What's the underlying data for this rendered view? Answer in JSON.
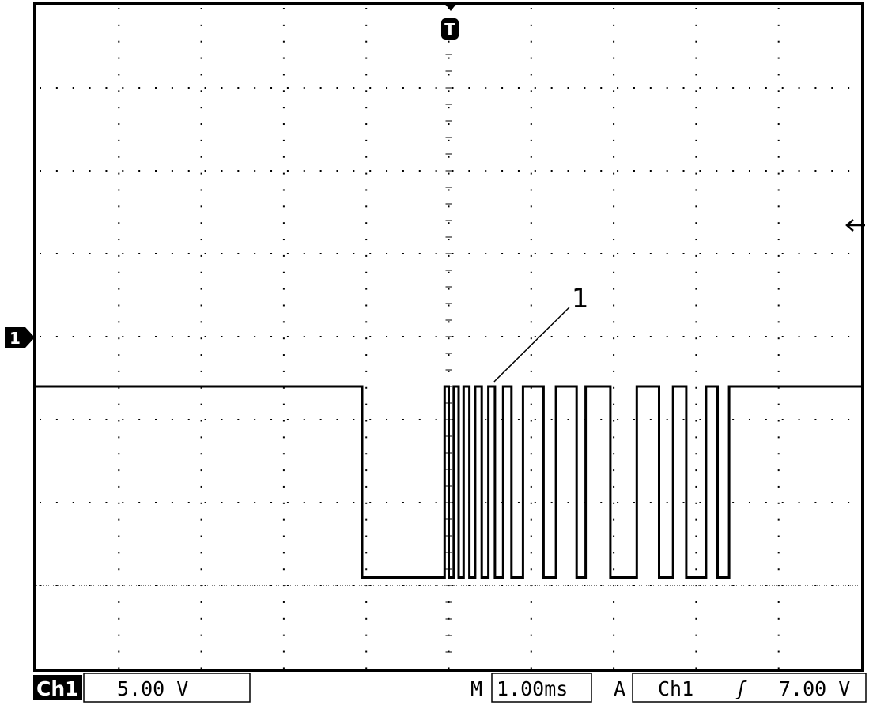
{
  "chart_data": {
    "type": "line",
    "title": "",
    "xlabel": "",
    "ylabel": "",
    "grid": true,
    "x_divisions": 10,
    "y_divisions": 8,
    "xlim": [
      -5.0,
      5.0
    ],
    "ylim": [
      -1.0,
      7.0
    ],
    "x_unit": "ms",
    "y_unit": "div",
    "series": [
      {
        "values_note": "",
        "x": [
          -5.0,
          -1.05,
          -1.05,
          -0.05,
          -0.05,
          0.0,
          0.0,
          0.06,
          0.06,
          0.12,
          0.12,
          0.18,
          0.18,
          0.25,
          0.25,
          0.32,
          0.32,
          0.4,
          0.4,
          0.48,
          0.48,
          0.56,
          0.56,
          0.66,
          0.66,
          0.76,
          0.76,
          0.9,
          0.9,
          1.15,
          1.15,
          1.3,
          1.3,
          1.55,
          1.55,
          1.66,
          1.66,
          1.96,
          1.96,
          2.28,
          2.28,
          2.55,
          2.55,
          2.72,
          2.72,
          2.88,
          2.88,
          3.12,
          3.12,
          3.26,
          3.26,
          3.4,
          3.4,
          5.0
        ],
        "values": [
          2.4,
          2.4,
          0.1,
          0.1,
          2.4,
          2.4,
          0.1,
          0.1,
          2.4,
          2.4,
          0.1,
          0.1,
          2.4,
          2.4,
          0.1,
          0.1,
          2.4,
          2.4,
          0.1,
          0.1,
          2.4,
          2.4,
          0.1,
          0.1,
          2.4,
          2.4,
          0.1,
          0.1,
          2.4,
          2.4,
          0.1,
          0.1,
          2.4,
          2.4,
          0.1,
          0.1,
          2.4,
          2.4,
          0.1,
          0.1,
          2.4,
          2.4,
          0.1,
          0.1,
          2.4,
          2.4,
          0.1,
          0.1,
          2.4,
          2.4,
          0.1,
          0.1,
          2.4,
          2.4
        ]
      }
    ],
    "annotation": {
      "label": "1",
      "x": 0.55,
      "y": 2.4
    }
  },
  "markers": {
    "trigger": "T",
    "channel": "1"
  },
  "status_bar": {
    "channel": "Ch1",
    "volts_per_div": "5.00 V",
    "time_prefix": "M",
    "time_per_div": "1.00ms",
    "trigger_prefix": "A",
    "trigger_channel": "Ch1",
    "trigger_slope_icon": "rising-edge-icon",
    "trigger_slope_glyph": "ʃ",
    "trigger_level": "7.00 V"
  }
}
